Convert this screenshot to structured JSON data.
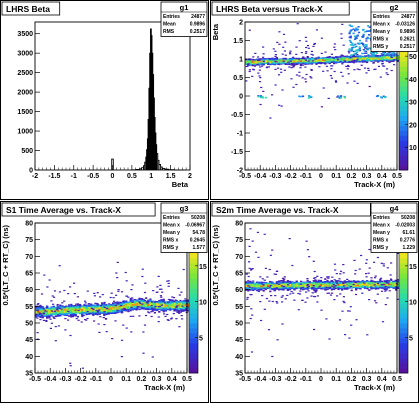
{
  "panels": [
    {
      "title": "LHRS Beta",
      "stats_name": "g1",
      "stats": [
        [
          "Entries",
          "24877"
        ],
        [
          "Mean",
          "0.9896"
        ],
        [
          "RMS",
          "0.2517"
        ]
      ],
      "chart_data": {
        "type": "bar",
        "title": "LHRS Beta",
        "xlabel": "Beta",
        "ylabel": "",
        "xlim": [
          -2,
          2
        ],
        "ylim": [
          0,
          3800
        ],
        "xticks": [
          "-2",
          "-1.5",
          "-1",
          "-0.5",
          "0",
          "0.5",
          "1",
          "1.5",
          "2"
        ],
        "yticks": [
          "0",
          "500",
          "1000",
          "1500",
          "2000",
          "2500",
          "3000",
          "3500"
        ],
        "bins": [
          [
            -0.02,
            0.02,
            280
          ],
          [
            0.5,
            0.6,
            6
          ],
          [
            0.6,
            0.7,
            15
          ],
          [
            0.7,
            0.75,
            30
          ],
          [
            0.75,
            0.8,
            60
          ],
          [
            0.8,
            0.83,
            110
          ],
          [
            0.83,
            0.86,
            200
          ],
          [
            0.86,
            0.88,
            330
          ],
          [
            0.88,
            0.9,
            520
          ],
          [
            0.9,
            0.92,
            800
          ],
          [
            0.92,
            0.94,
            1300
          ],
          [
            0.94,
            0.96,
            2100
          ],
          [
            0.96,
            0.98,
            3000
          ],
          [
            0.98,
            1.0,
            3620
          ],
          [
            1.0,
            1.02,
            3450
          ],
          [
            1.02,
            1.04,
            3000
          ],
          [
            1.04,
            1.06,
            2450
          ],
          [
            1.06,
            1.08,
            1850
          ],
          [
            1.08,
            1.1,
            1350
          ],
          [
            1.1,
            1.12,
            950
          ],
          [
            1.12,
            1.14,
            650
          ],
          [
            1.14,
            1.17,
            420
          ],
          [
            1.17,
            1.2,
            250
          ],
          [
            1.2,
            1.24,
            140
          ],
          [
            1.24,
            1.28,
            80
          ],
          [
            1.28,
            1.35,
            40
          ],
          [
            1.35,
            1.45,
            20
          ],
          [
            1.45,
            1.6,
            8
          ],
          [
            1.6,
            1.85,
            3
          ]
        ]
      }
    },
    {
      "title": "LHRS Beta versus Track-X",
      "stats_name": "g2",
      "stats": [
        [
          "Entries",
          "24877"
        ],
        [
          "Mean x",
          "-0.03126"
        ],
        [
          "Mean y",
          "0.9896"
        ],
        [
          "RMS x",
          "0.2621"
        ],
        [
          "RMS y",
          "0.2517"
        ]
      ],
      "chart_data": {
        "type": "heatmap",
        "title": "LHRS Beta versus Track-X",
        "xlabel": "Track-X (m)",
        "ylabel": "Beta",
        "xlim": [
          -0.5,
          0.5
        ],
        "ylim": [
          -2,
          2
        ],
        "xticks": [
          "-0.5",
          "-0.4",
          "-0.3",
          "-0.2",
          "-0.1",
          "0",
          "0.1",
          "0.2",
          "0.3",
          "0.4",
          "0.5"
        ],
        "yticks": [
          "-2",
          "-1.5",
          "-1",
          "-0.5",
          "0",
          "0.5",
          "1",
          "1.5",
          "2"
        ],
        "zticks": [
          "10",
          "20",
          "30",
          "40",
          "50",
          "60"
        ],
        "zmax": 65,
        "band": {
          "center_points": [
            [
              -0.5,
              0.93
            ],
            [
              -0.35,
              0.95
            ],
            [
              -0.1,
              0.97
            ],
            [
              0.1,
              1.0
            ],
            [
              0.2,
              1.02
            ],
            [
              0.3,
              1.03
            ],
            [
              0.45,
              1.05
            ],
            [
              0.5,
              1.05
            ]
          ],
          "width": 0.12
        },
        "extras": [
          {
            "x": [
              0.18,
              0.5
            ],
            "y": [
              1.1,
              1.6
            ],
            "level": 30
          },
          {
            "x": [
              0.18,
              0.5
            ],
            "y": [
              1.6,
              1.95
            ],
            "level": 25
          },
          {
            "x": [
              -0.42,
              -0.37
            ],
            "y": [
              -0.03,
              0.03
            ],
            "level": 30
          },
          {
            "x": [
              -0.15,
              -0.05
            ],
            "y": [
              -0.03,
              0.03
            ],
            "level": 30
          },
          {
            "x": [
              0.1,
              0.15
            ],
            "y": [
              -0.03,
              0.03
            ],
            "level": 35
          },
          {
            "x": [
              0.36,
              0.42
            ],
            "y": [
              -0.03,
              0.03
            ],
            "level": 30
          }
        ]
      }
    },
    {
      "title": "S1 Time Average vs. Track-X",
      "stats_name": "g3",
      "stats": [
        [
          "Entries",
          "50208"
        ],
        [
          "Mean x",
          "-0.06967"
        ],
        [
          "Mean y",
          "54.78"
        ],
        [
          "RMS x",
          "0.2645"
        ],
        [
          "RMS y",
          "1.577"
        ]
      ],
      "chart_data": {
        "type": "heatmap",
        "title": "S1 Time Average vs. Track-X",
        "xlabel": "Track-X (m)",
        "ylabel": "0.5*(LT_C + RT_C) (ns)",
        "xlim": [
          -0.5,
          0.5
        ],
        "ylim": [
          35,
          80
        ],
        "xticks": [
          "-0.5",
          "-0.4",
          "-0.3",
          "-0.2",
          "-0.1",
          "0",
          "0.1",
          "0.2",
          "0.3",
          "0.4",
          "0.5"
        ],
        "yticks": [
          "35",
          "40",
          "45",
          "50",
          "55",
          "60",
          "65",
          "70",
          "75",
          "80"
        ],
        "zticks": [
          "5",
          "10",
          "15",
          "20"
        ],
        "zmax": 21,
        "band": {
          "center_points": [
            [
              -0.5,
              53.5
            ],
            [
              -0.3,
              54.0
            ],
            [
              0.0,
              54.5
            ],
            [
              0.1,
              55.5
            ],
            [
              0.2,
              56.0
            ],
            [
              0.3,
              55.5
            ],
            [
              0.5,
              55.5
            ]
          ],
          "width": 2.4
        },
        "extras": []
      }
    },
    {
      "title": "S2m Time Average vs. Track-X",
      "stats_name": "g4",
      "stats": [
        [
          "Entries",
          "50208"
        ],
        [
          "Mean x",
          "-0.02003"
        ],
        [
          "Mean y",
          "61.61"
        ],
        [
          "RMS x",
          "0.2776"
        ],
        [
          "RMS y",
          "1.229"
        ]
      ],
      "chart_data": {
        "type": "heatmap",
        "title": "S2m Time Average vs. Track-X",
        "xlabel": "Track-X (m)",
        "ylabel": "0.5*(LT_C + RT_C) (ns)",
        "xlim": [
          -0.5,
          0.5
        ],
        "ylim": [
          35,
          80
        ],
        "xticks": [
          "-0.5",
          "-0.4",
          "-0.3",
          "-0.2",
          "-0.1",
          "0",
          "0.1",
          "0.2",
          "0.3",
          "0.4",
          "0.5"
        ],
        "yticks": [
          "35",
          "40",
          "45",
          "50",
          "55",
          "60",
          "65",
          "70",
          "75",
          "80"
        ],
        "zticks": [
          "5",
          "10",
          "15",
          "20"
        ],
        "zmax": 21,
        "band": {
          "center_points": [
            [
              -0.5,
              61.3
            ],
            [
              0.0,
              61.6
            ],
            [
              0.5,
              61.8
            ]
          ],
          "width": 1.8
        },
        "extras": []
      }
    }
  ]
}
